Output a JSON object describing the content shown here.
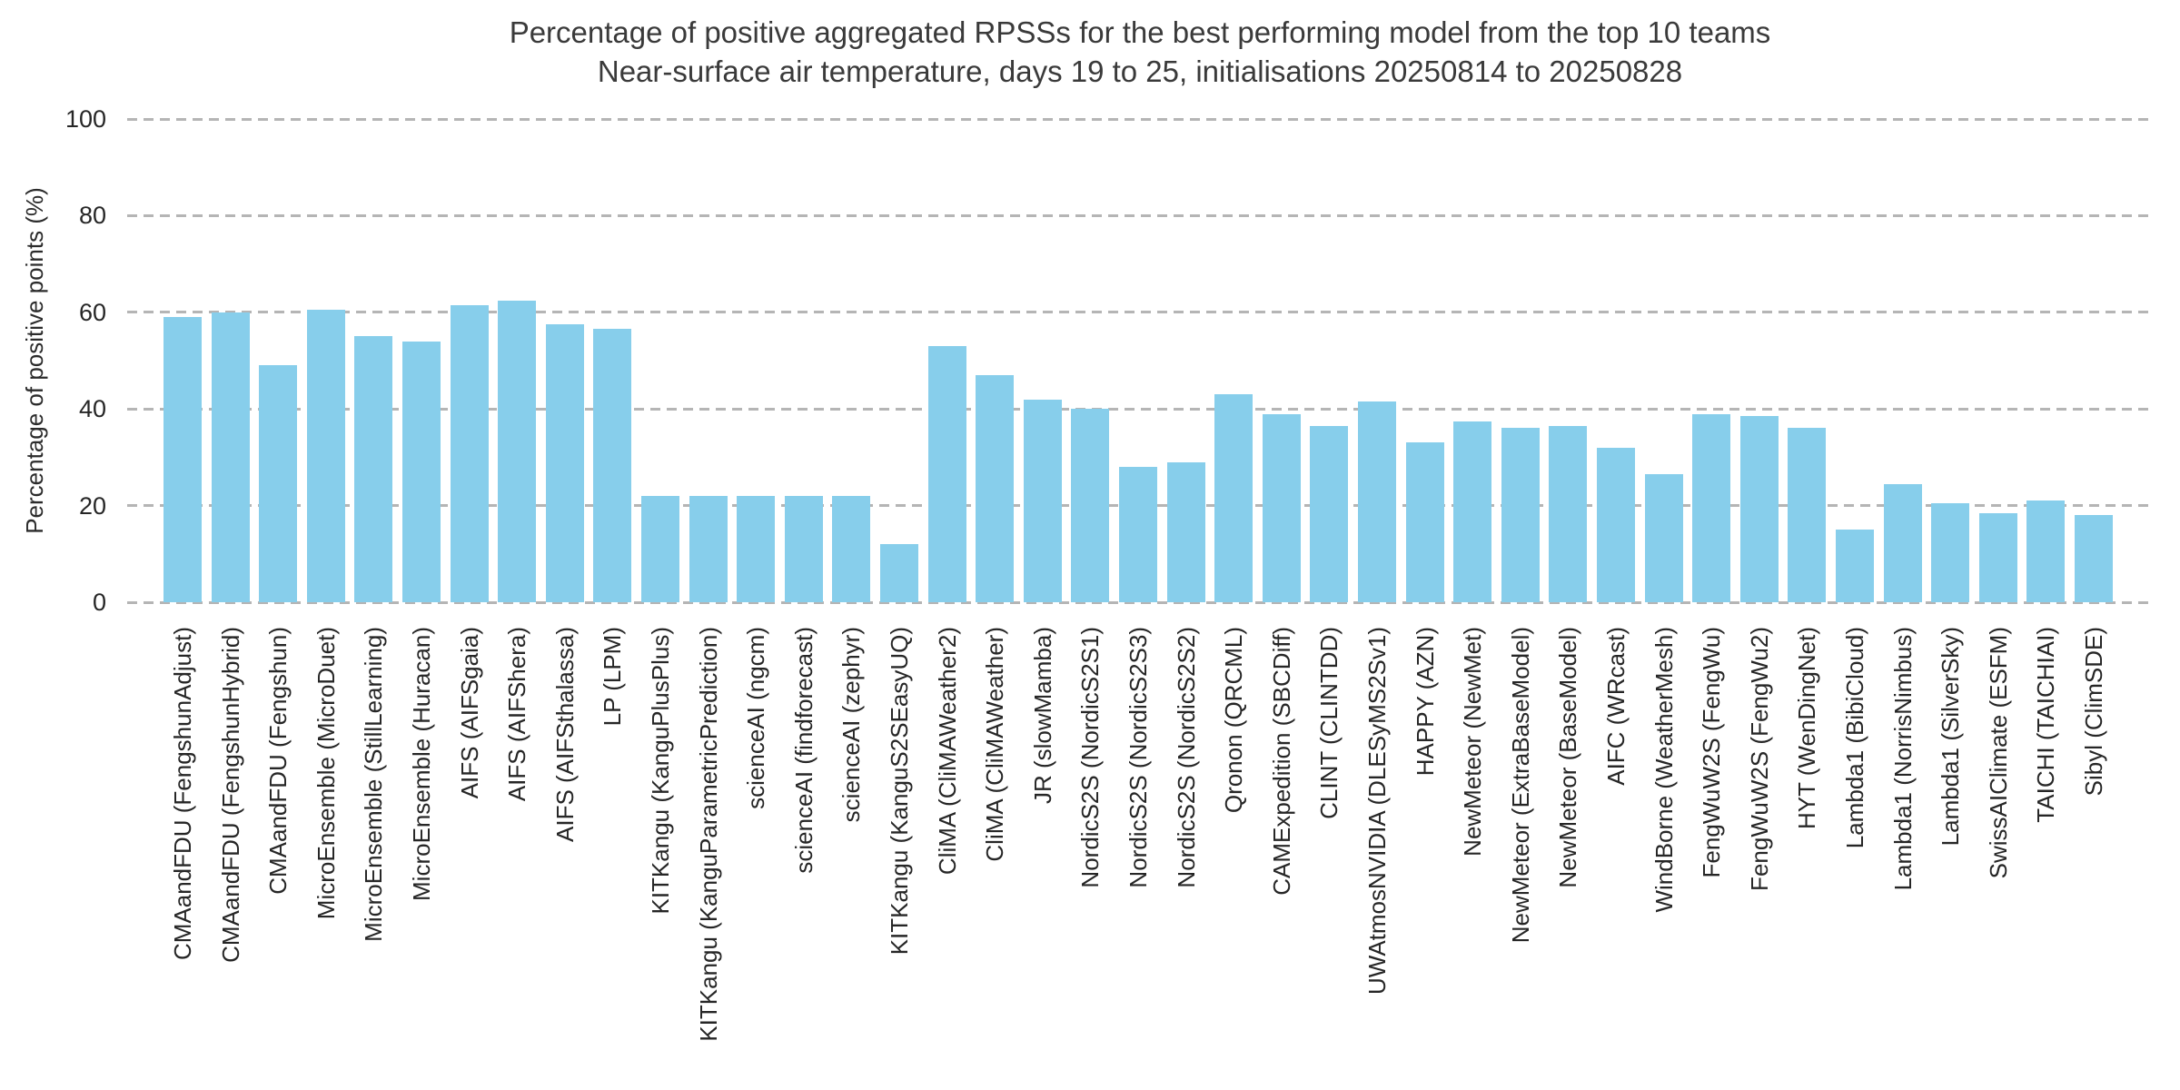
{
  "title": "Percentage of positive aggregated RPSSs for the best performing model from the top 10 teams",
  "subtitle": "Near-surface air temperature, days 19 to 25, initialisations 20250814 to 20250828",
  "y_axis": {
    "label": "Percentage of positive points (%)",
    "ticks": [
      0,
      20,
      40,
      60,
      80,
      100
    ]
  },
  "colors": {
    "bar": "#87CEEB",
    "gridline": "#b5b5b5",
    "text": "#262626"
  },
  "chart_data": {
    "type": "bar",
    "title": "Percentage of positive aggregated RPSSs for the best performing model from the top 10 teams",
    "subtitle": "Near-surface air temperature, days 19 to 25, initialisations 20250814 to 20250828",
    "xlabel": "",
    "ylabel": "Percentage of positive points (%)",
    "ylim": [
      0,
      100
    ],
    "grid": true,
    "grid_style": "dashed",
    "legend": "none",
    "categories": [
      "CMAandFDU (FengshunAdjust)",
      "CMAandFDU (FengshunHybrid)",
      "CMAandFDU (Fengshun)",
      "MicroEnsemble (MicroDuet)",
      "MicroEnsemble (StillLearning)",
      "MicroEnsemble (Huracan)",
      "AIFS (AIFSgaia)",
      "AIFS (AIFShera)",
      "AIFS (AIFSthalassa)",
      "LP (LPM)",
      "KITKangu (KanguPlusPlus)",
      "KITKangu (KanguParametricPrediction)",
      "scienceAI (ngcm)",
      "scienceAI (findforecast)",
      "scienceAI (zephyr)",
      "KITKangu (KanguS2SEasyUQ)",
      "CliMA (CliMAWeather2)",
      "CliMA (CliMAWeather)",
      "JR (slowMamba)",
      "NordicS2S (NordicS2S1)",
      "NordicS2S (NordicS2S3)",
      "NordicS2S (NordicS2S2)",
      "Qronon (QRCML)",
      "CAMExpedition (SBCDiff)",
      "CLINT (CLINTDD)",
      "UWAtmosNVIDIA (DLESyMS2Sv1)",
      "HAPPY (AZN)",
      "NewMeteor (NewMet)",
      "NewMeteor (ExtraBaseModel)",
      "NewMeteor (BaseModel)",
      "AIFC (WRcast)",
      "WindBorne (WeatherMesh)",
      "FengWuW2S (FengWu)",
      "FengWuW2S (FengWu2)",
      "HYT (WenDingNet)",
      "Lambda1 (BibiCloud)",
      "Lambda1 (NorrisNimbus)",
      "Lambda1 (SilverSky)",
      "SwissAIClimate (ESFM)",
      "TAICHI (TAICHIAI)",
      "Sibyl (ClimSDE)"
    ],
    "values": [
      59,
      60,
      49,
      60.5,
      55,
      54,
      61.5,
      62.5,
      57.5,
      56.5,
      22,
      22,
      22,
      22,
      22,
      12,
      53,
      47,
      42,
      40,
      28,
      29,
      43,
      39,
      36.5,
      41.5,
      33,
      37.5,
      36,
      36.5,
      32,
      26.5,
      39,
      38.5,
      36,
      15,
      24.5,
      20.5,
      18.5,
      21,
      18
    ]
  }
}
